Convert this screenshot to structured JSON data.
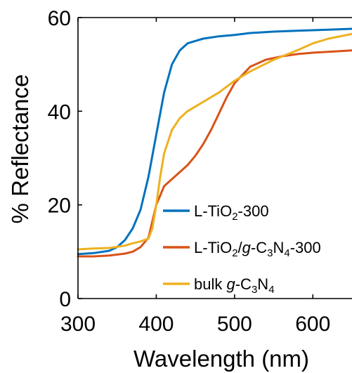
{
  "chart_data": {
    "type": "line",
    "xlabel": "Wavelength (nm)",
    "ylabel": "% Reflectance",
    "xlim": [
      300,
      650
    ],
    "ylim": [
      0,
      60
    ],
    "xticks": [
      300,
      400,
      500,
      600
    ],
    "yticks": [
      0,
      20,
      40,
      60
    ],
    "grid": false,
    "legend_position": "lower-right",
    "series": [
      {
        "name": "L-TiO2-300",
        "legend_parts": [
          {
            "t": "L-TiO"
          },
          {
            "t": "2",
            "sub": true
          },
          {
            "t": "-300"
          }
        ],
        "color": "#0072BD",
        "x": [
          300,
          320,
          340,
          350,
          360,
          370,
          380,
          390,
          400,
          410,
          420,
          430,
          440,
          450,
          460,
          480,
          500,
          520,
          550,
          580,
          600,
          620,
          650
        ],
        "y": [
          9.5,
          9.7,
          10.2,
          11,
          12.5,
          15,
          19,
          26,
          35,
          44,
          50,
          53,
          54.5,
          55,
          55.5,
          56,
          56.3,
          56.7,
          57,
          57.2,
          57.3,
          57.4,
          57.6
        ]
      },
      {
        "name": "L-TiO2/g-C3N4-300",
        "legend_parts": [
          {
            "t": "L-TiO"
          },
          {
            "t": "2",
            "sub": true
          },
          {
            "t": "/"
          },
          {
            "t": "g",
            "italic": true
          },
          {
            "t": "-C"
          },
          {
            "t": "3",
            "sub": true
          },
          {
            "t": "N"
          },
          {
            "t": "4",
            "sub": true
          },
          {
            "t": "-300"
          }
        ],
        "color": "#D95319",
        "x": [
          300,
          320,
          340,
          360,
          370,
          380,
          390,
          400,
          410,
          420,
          430,
          440,
          450,
          460,
          470,
          480,
          490,
          500,
          520,
          540,
          560,
          580,
          600,
          620,
          650
        ],
        "y": [
          9.0,
          9.0,
          9.2,
          9.6,
          10,
          11,
          13,
          20,
          24,
          25.5,
          27,
          28.5,
          30.5,
          33,
          36,
          39.5,
          43,
          46,
          49.5,
          51,
          51.7,
          52.2,
          52.5,
          52.7,
          53
        ]
      },
      {
        "name": "bulk g-C3N4",
        "legend_parts": [
          {
            "t": "bulk "
          },
          {
            "t": "g",
            "italic": true
          },
          {
            "t": "-C"
          },
          {
            "t": "3",
            "sub": true
          },
          {
            "t": "N"
          },
          {
            "t": "4",
            "sub": true
          }
        ],
        "color": "#EDB120",
        "x": [
          300,
          320,
          340,
          360,
          370,
          380,
          390,
          395,
          400,
          405,
          410,
          420,
          430,
          440,
          450,
          460,
          480,
          500,
          520,
          550,
          580,
          600,
          620,
          650
        ],
        "y": [
          10.5,
          10.7,
          10.8,
          11.3,
          11.8,
          12.2,
          12.8,
          15,
          20,
          26,
          31,
          36,
          38.5,
          40,
          41,
          42,
          44,
          46.5,
          48.5,
          51,
          53,
          54.5,
          55.5,
          56.5
        ]
      }
    ]
  }
}
